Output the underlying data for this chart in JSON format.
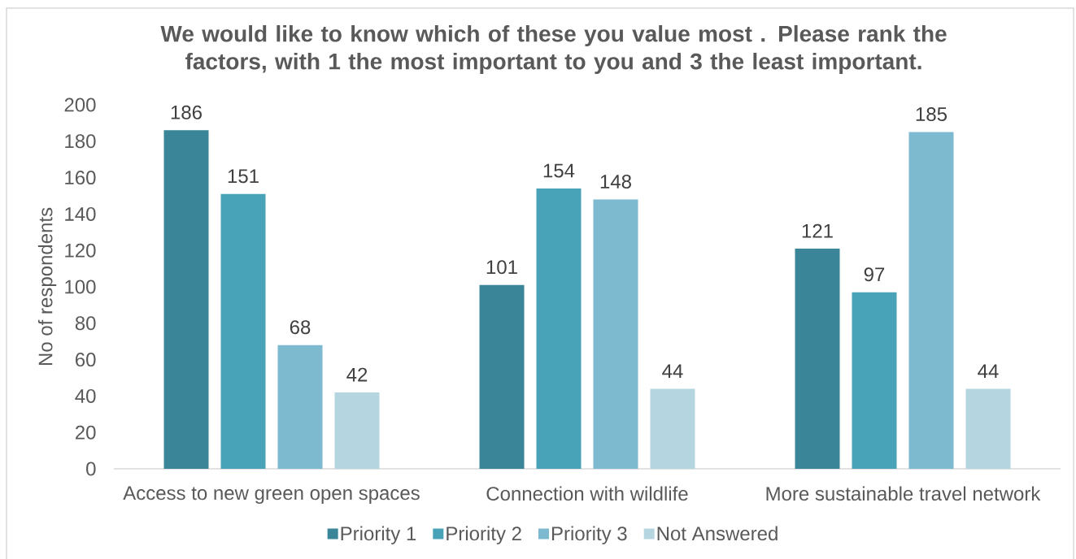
{
  "chart_data": {
    "type": "bar",
    "title": "We would like to know which of these you value most . Please rank the factors, with 1 the most important to you and 3 the least important.",
    "ylabel": "No of respondents",
    "categories": [
      "Access to new green open spaces",
      "Connection with wildlife",
      "More sustainable travel network"
    ],
    "series": [
      {
        "name": "Priority 1",
        "color": "#3a8698",
        "values": [
          186,
          101,
          121
        ]
      },
      {
        "name": "Priority 2",
        "color": "#48a2b8",
        "values": [
          151,
          154,
          97
        ]
      },
      {
        "name": "Priority 3",
        "color": "#7db9cf",
        "values": [
          68,
          148,
          185
        ]
      },
      {
        "name": "Not Answered",
        "color": "#b5d5e0",
        "values": [
          42,
          44,
          44
        ]
      }
    ],
    "ylim": [
      0,
      200
    ],
    "yticks": [
      0,
      20,
      40,
      60,
      80,
      100,
      120,
      140,
      160,
      180,
      200
    ],
    "data_labels": true,
    "legend": "bottom"
  }
}
